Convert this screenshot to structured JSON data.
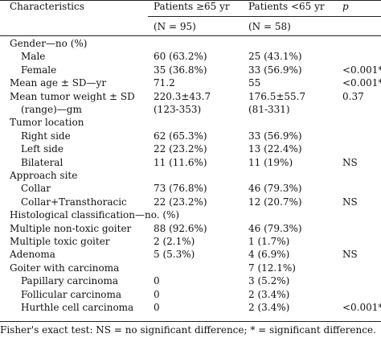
{
  "header": {
    "col1": "Characteristics",
    "col2": "Patients ≥65 yr",
    "col3": "Patients <65 yr",
    "col4": "p"
  },
  "subheader": {
    "col2": "(N = 95)",
    "col3": "(N = 58)"
  },
  "rows": [
    {
      "label": "Gender—no (%)",
      "indent": false,
      "old": "",
      "young": "",
      "p": ""
    },
    {
      "label": "Male",
      "indent": true,
      "old": "60 (63.2%)",
      "young": "25 (43.1%)",
      "p": ""
    },
    {
      "label": "Female",
      "indent": true,
      "old": "35 (36.8%)",
      "young": "33 (56.9%)",
      "p": "<0.001*"
    },
    {
      "label": "Mean age ± SD—yr",
      "indent": false,
      "old": "71.2",
      "young": "55",
      "p": "<0.001*"
    },
    {
      "label": "Mean tumor weight ± SD",
      "indent": false,
      "old": "220.3±43.7",
      "young": "176.5±55.7",
      "p": "0.37"
    },
    {
      "label": "(range)—gm",
      "indent": true,
      "old": "(123-353)",
      "young": "(81-331)",
      "p": ""
    },
    {
      "label": "Tumor location",
      "indent": false,
      "old": "",
      "young": "",
      "p": ""
    },
    {
      "label": "Right side",
      "indent": true,
      "old": "62 (65.3%)",
      "young": "33 (56.9%)",
      "p": ""
    },
    {
      "label": "Left side",
      "indent": true,
      "old": "22 (23.2%)",
      "young": "13 (22.4%)",
      "p": ""
    },
    {
      "label": "Bilateral",
      "indent": true,
      "old": "11 (11.6%)",
      "young": "11 (19%)",
      "p": "NS"
    },
    {
      "label": "Approach site",
      "indent": false,
      "old": "",
      "young": "",
      "p": ""
    },
    {
      "label": "Collar",
      "indent": true,
      "old": "73 (76.8%)",
      "young": "46 (79.3%)",
      "p": ""
    },
    {
      "label": "Collar+Transthoracic",
      "indent": true,
      "old": "22 (23.2%)",
      "young": "12 (20.7%)",
      "p": "NS"
    },
    {
      "label": "Histological classification—no. (%)",
      "indent": false,
      "old": "",
      "young": "",
      "p": ""
    },
    {
      "label": "Multiple non-toxic goiter",
      "indent": false,
      "old": "88 (92.6%)",
      "young": "46 (79.3%)",
      "p": ""
    },
    {
      "label": "Multiple toxic goiter",
      "indent": false,
      "old": "2 (2.1%)",
      "young": "1 (1.7%)",
      "p": ""
    },
    {
      "label": "Adenoma",
      "indent": false,
      "old": "5 (5.3%)",
      "young": "4 (6.9%)",
      "p": "NS"
    },
    {
      "label": "Goiter with carcinoma",
      "indent": false,
      "old": "",
      "young": "7 (12.1%)",
      "p": ""
    },
    {
      "label": "Papillary carcinoma",
      "indent": true,
      "old": "0",
      "young": "3 (5.2%)",
      "p": ""
    },
    {
      "label": "Follicular carcinoma",
      "indent": true,
      "old": "0",
      "young": "2 (3.4%)",
      "p": ""
    },
    {
      "label": "Hurthle cell carcinoma",
      "indent": true,
      "old": "0",
      "young": "2 (3.4%)",
      "p": "<0.001*"
    }
  ],
  "footnote": "Fisher's exact test: NS = no significant difference; * = significant difference."
}
